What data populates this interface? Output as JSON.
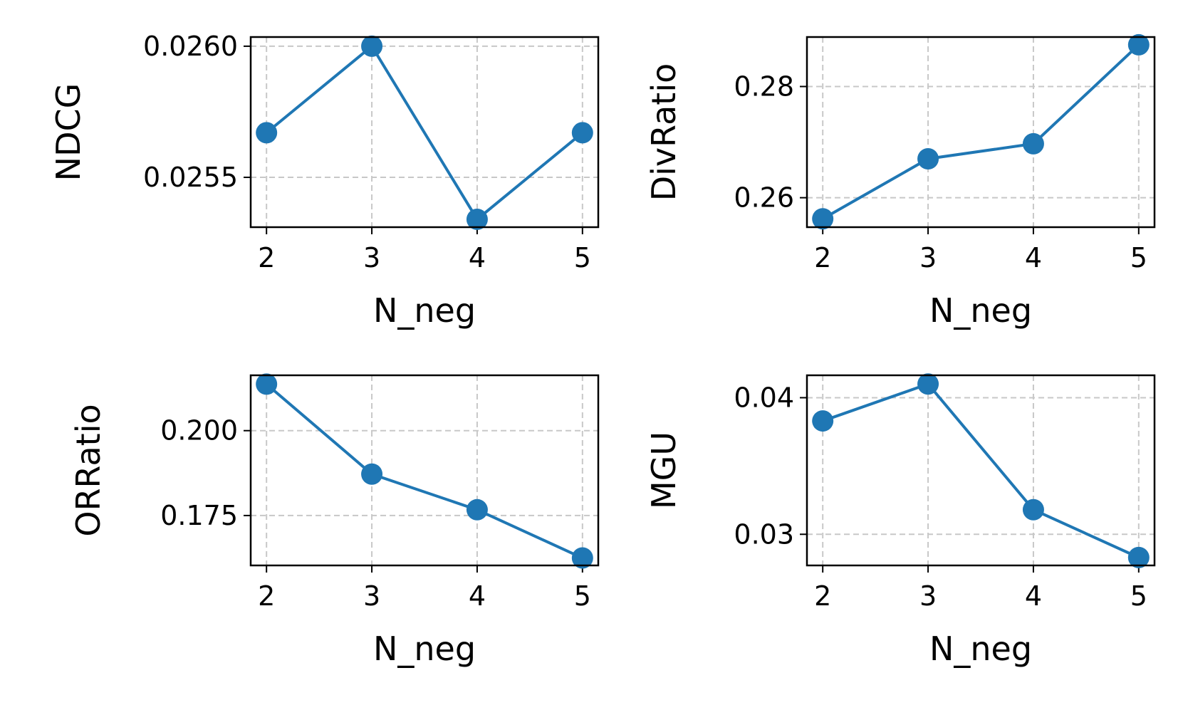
{
  "chart_data": [
    {
      "type": "line",
      "xlabel": "N_neg",
      "ylabel": "NDCG",
      "x": [
        2,
        3,
        4,
        5
      ],
      "xticks": [
        "2",
        "3",
        "4",
        "5"
      ],
      "xlim": [
        1.85,
        5.15
      ],
      "values": [
        0.02567,
        0.026,
        0.02534,
        0.02567
      ],
      "ylim": [
        0.02531,
        0.026035
      ],
      "yticks": [
        0.0255,
        0.026
      ],
      "ytick_labels": [
        "0.0255",
        "0.0260"
      ],
      "grid": true,
      "color": "#1f77b4"
    },
    {
      "type": "line",
      "xlabel": "N_neg",
      "ylabel": "DivRatio",
      "x": [
        2,
        3,
        4,
        5
      ],
      "xticks": [
        "2",
        "3",
        "4",
        "5"
      ],
      "xlim": [
        1.85,
        5.15
      ],
      "values": [
        0.2562,
        0.267,
        0.2697,
        0.2875
      ],
      "ylim": [
        0.2547,
        0.2889
      ],
      "yticks": [
        0.26,
        0.28
      ],
      "ytick_labels": [
        "0.26",
        "0.28"
      ],
      "grid": true,
      "color": "#1f77b4"
    },
    {
      "type": "line",
      "xlabel": "N_neg",
      "ylabel": "ORRatio",
      "x": [
        2,
        3,
        4,
        5
      ],
      "xticks": [
        "2",
        "3",
        "4",
        "5"
      ],
      "xlim": [
        1.85,
        5.15
      ],
      "values": [
        0.2137,
        0.1872,
        0.1767,
        0.1625
      ],
      "ylim": [
        0.1603,
        0.2163
      ],
      "yticks": [
        0.175,
        0.2
      ],
      "ytick_labels": [
        "0.175",
        "0.200"
      ],
      "grid": true,
      "color": "#1f77b4"
    },
    {
      "type": "line",
      "xlabel": "N_neg",
      "ylabel": "MGU",
      "x": [
        2,
        3,
        4,
        5
      ],
      "xticks": [
        "2",
        "3",
        "4",
        "5"
      ],
      "xlim": [
        1.85,
        5.15
      ],
      "values": [
        0.0383,
        0.041,
        0.0318,
        0.0283
      ],
      "ylim": [
        0.02772,
        0.04164
      ],
      "yticks": [
        0.03,
        0.04
      ],
      "ytick_labels": [
        "0.03",
        "0.04"
      ],
      "grid": true,
      "color": "#1f77b4"
    }
  ]
}
